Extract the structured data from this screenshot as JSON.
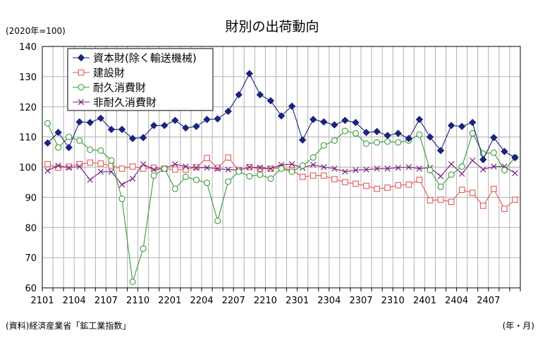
{
  "chart_data": {
    "type": "line",
    "title": "財別の出荷動向",
    "ylabel": "(2020年=100)",
    "xlabel": "",
    "x_unit": "(年・月)",
    "source": "(資料)経済産業省「鉱工業指数」",
    "ylim": [
      60,
      140
    ],
    "yticks": [
      60,
      70,
      80,
      90,
      100,
      110,
      120,
      130,
      140
    ],
    "grid": true,
    "legend_position": "top-left",
    "categories": [
      "2101",
      "2102",
      "2103",
      "2104",
      "2105",
      "2106",
      "2107",
      "2108",
      "2109",
      "2110",
      "2111",
      "2112",
      "2201",
      "2202",
      "2203",
      "2204",
      "2205",
      "2206",
      "2207",
      "2208",
      "2209",
      "2210",
      "2211",
      "2212",
      "2301",
      "2302",
      "2303",
      "2304",
      "2305",
      "2306",
      "2307",
      "2308",
      "2309",
      "2310",
      "2311",
      "2312",
      "2401",
      "2402",
      "2403",
      "2404",
      "2405",
      "2406",
      "2407",
      "2408",
      "2409"
    ],
    "xticks": [
      "2101",
      "2104",
      "2107",
      "2110",
      "2201",
      "2204",
      "2207",
      "2210",
      "2301",
      "2304",
      "2307",
      "2310",
      "2401",
      "2404",
      "2407"
    ],
    "series": [
      {
        "name": "資本財(除く輸送機械)",
        "color": "#1a237e",
        "marker": "diamond",
        "values": [
          108,
          111.5,
          106.5,
          115,
          114.8,
          116.2,
          112.5,
          112.5,
          109.5,
          109.8,
          113.8,
          113.8,
          115.5,
          113,
          113.5,
          115.8,
          116,
          118.5,
          124,
          131,
          124,
          122,
          117,
          120.2,
          109,
          115.8,
          115,
          114,
          115.5,
          114.8,
          111.5,
          111.8,
          110.5,
          111.2,
          109.5,
          115.8,
          110,
          105.5,
          113.8,
          113.5,
          114.8,
          102.5,
          109.8,
          105.2,
          103.2
        ]
      },
      {
        "name": "建設財",
        "color": "#e05a5a",
        "marker": "square",
        "values": [
          101,
          99.8,
          100.2,
          101,
          101.5,
          101.2,
          100.5,
          99.5,
          100.2,
          99.5,
          99.8,
          99.5,
          99.2,
          99.2,
          100,
          103,
          99.8,
          103.2,
          99,
          100,
          99.5,
          99.5,
          99.8,
          99,
          96.8,
          97.2,
          97.2,
          96,
          95,
          94.5,
          93.8,
          92.8,
          93.2,
          94,
          94.2,
          95.8,
          89,
          89.2,
          88.5,
          92.5,
          91.5,
          87.2,
          92.8,
          86.2,
          89.2
        ]
      },
      {
        "name": "耐久消費財",
        "color": "#3a9a3a",
        "marker": "circle",
        "values": [
          114.5,
          106.5,
          110,
          108.8,
          105.8,
          105.5,
          102.2,
          89.5,
          62,
          73,
          97.2,
          99.5,
          92.8,
          96.8,
          95.8,
          94.8,
          82.2,
          95.2,
          98.5,
          97,
          97.5,
          96.2,
          99.5,
          98.5,
          100.5,
          103.2,
          107.2,
          108.8,
          112,
          111.2,
          107.8,
          108.2,
          108.5,
          108.2,
          108.8,
          110.8,
          99,
          93.5,
          97.5,
          100.2,
          111.2,
          104.5,
          104.8,
          99,
          103.2
        ]
      },
      {
        "name": "非耐久消費財",
        "color": "#7b1f7b",
        "marker": "x",
        "values": [
          98.8,
          100.5,
          99.8,
          100.2,
          95.8,
          98.5,
          98.5,
          94.2,
          96.2,
          101,
          99.2,
          99.5,
          101,
          100.2,
          99.8,
          99.8,
          99.5,
          99.2,
          99,
          100,
          99.8,
          99.5,
          100.8,
          101,
          99.8,
          100.8,
          100,
          99.5,
          98.5,
          99,
          99.2,
          99.5,
          99.5,
          99.8,
          100,
          99.5,
          99.8,
          97,
          101,
          97.8,
          102.2,
          99.2,
          100.2,
          100.2,
          98
        ]
      }
    ]
  }
}
